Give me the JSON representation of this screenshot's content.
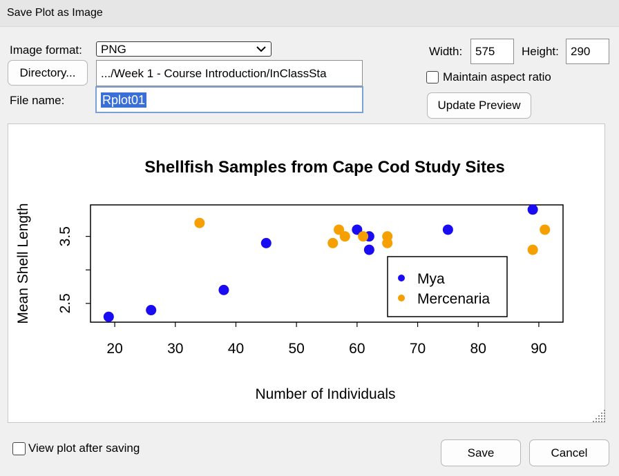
{
  "window": {
    "title": "Save Plot as Image"
  },
  "format": {
    "label": "Image format:",
    "value": "PNG"
  },
  "directory": {
    "button_label": "Directory...",
    "path": ".../Week 1 - Course Introduction/InClassSta"
  },
  "filename": {
    "label": "File name:",
    "value": "Rplot01"
  },
  "size": {
    "width_label": "Width:",
    "width_value": "575",
    "height_label": "Height:",
    "height_value": "290",
    "aspect_label": "Maintain aspect ratio",
    "update_label": "Update Preview"
  },
  "footer": {
    "view_label": "View plot after saving",
    "save_label": "Save",
    "cancel_label": "Cancel"
  },
  "colors": {
    "mya": "#1a0cf2",
    "mercenaria": "#f5a000",
    "selection": "#3a6fd8"
  },
  "chart_data": {
    "type": "scatter",
    "title": "Shellfish Samples from Cape Cod Study Sites",
    "xlabel": "Number of Individuals",
    "ylabel": "Mean Shell Length",
    "xlim": [
      16,
      94
    ],
    "ylim": [
      2.22,
      3.97
    ],
    "xticks": [
      20,
      30,
      40,
      50,
      60,
      70,
      80,
      90
    ],
    "yticks": [
      2.5,
      3.0,
      3.5
    ],
    "ytick_labels": [
      "2.5",
      "",
      "3.5"
    ],
    "legend_position": "bottom-right",
    "series": [
      {
        "name": "Mya",
        "color": "#1a0cf2",
        "points": [
          [
            19,
            2.3
          ],
          [
            26,
            2.4
          ],
          [
            38,
            2.7
          ],
          [
            45,
            3.4
          ],
          [
            60,
            3.6
          ],
          [
            62,
            3.5
          ],
          [
            62,
            3.3
          ],
          [
            75,
            3.6
          ],
          [
            89,
            3.9
          ]
        ]
      },
      {
        "name": "Mercenaria",
        "color": "#f5a000",
        "points": [
          [
            34,
            3.7
          ],
          [
            56,
            3.4
          ],
          [
            57,
            3.6
          ],
          [
            58,
            3.5
          ],
          [
            61,
            3.5
          ],
          [
            65,
            3.5
          ],
          [
            65,
            3.4
          ],
          [
            89,
            3.3
          ],
          [
            91,
            3.6
          ]
        ]
      }
    ]
  }
}
